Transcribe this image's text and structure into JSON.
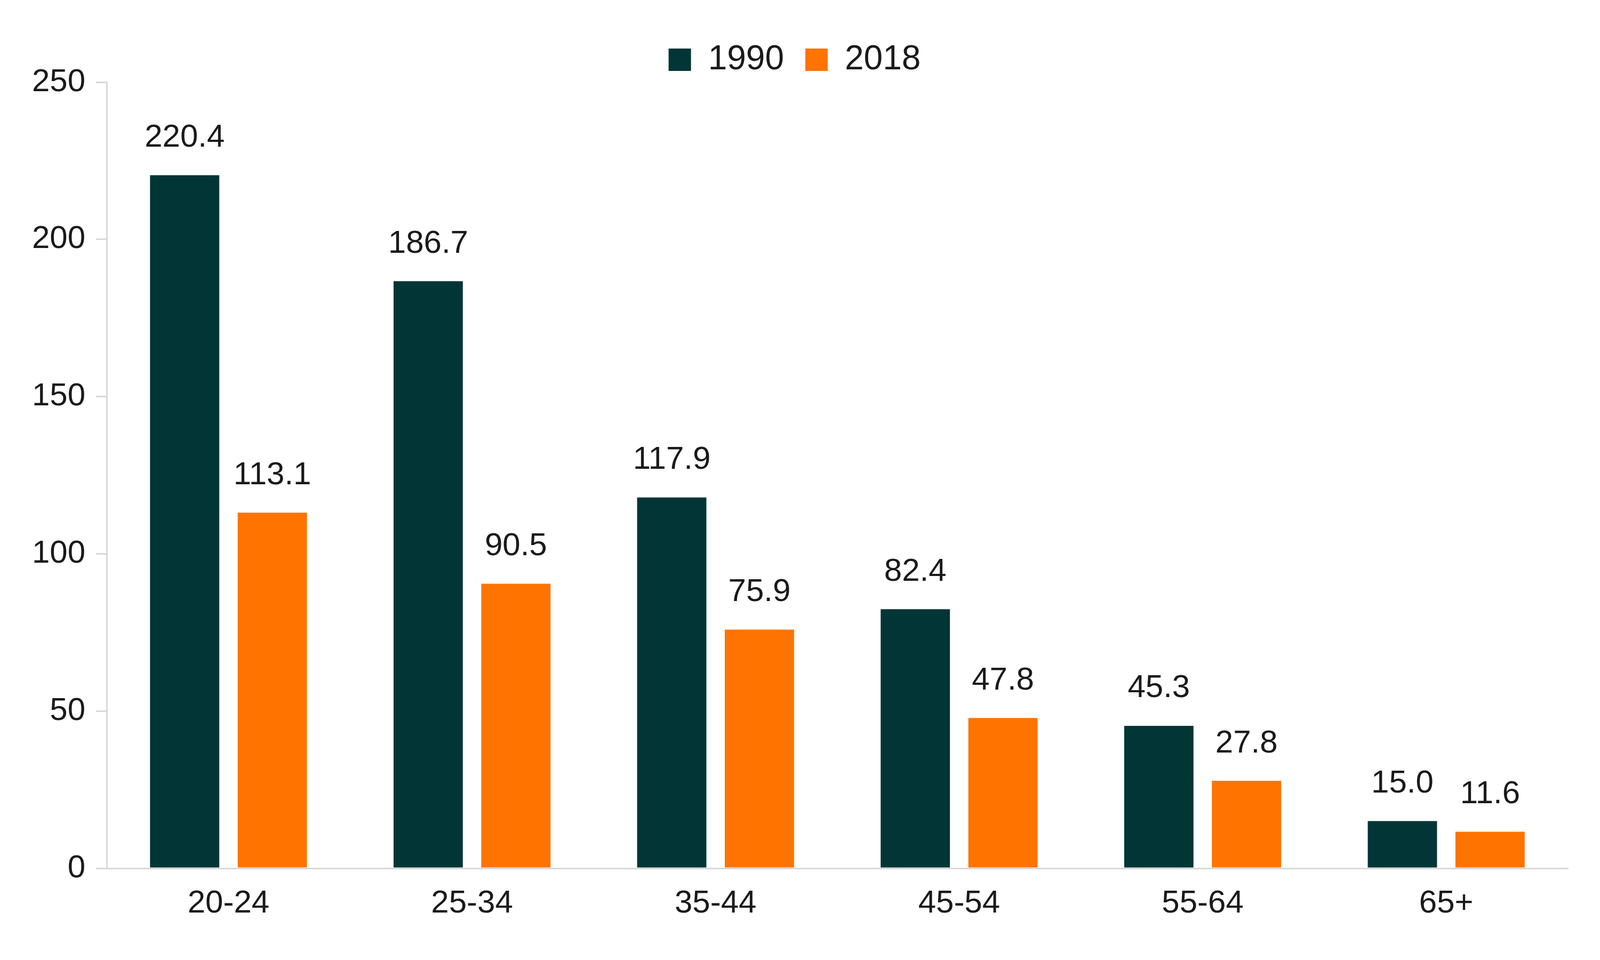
{
  "chart_data": {
    "type": "bar",
    "categories": [
      "20-24",
      "25-34",
      "35-44",
      "45-54",
      "55-64",
      "65+"
    ],
    "series": [
      {
        "name": "1990",
        "color": "#023535",
        "values": [
          220.4,
          186.7,
          117.9,
          82.4,
          45.3,
          15.0
        ],
        "value_labels": [
          "220.4",
          "186.7",
          "117.9",
          "82.4",
          "45.3",
          "15.0"
        ]
      },
      {
        "name": "2018",
        "color": "#ff7300",
        "values": [
          113.1,
          90.5,
          75.9,
          47.8,
          27.8,
          11.6
        ]
      }
    ],
    "ylim": [
      0,
      250
    ],
    "yticks": [
      0,
      50,
      100,
      150,
      200,
      250
    ],
    "grid": false,
    "legend": "top",
    "data_labels": true
  }
}
